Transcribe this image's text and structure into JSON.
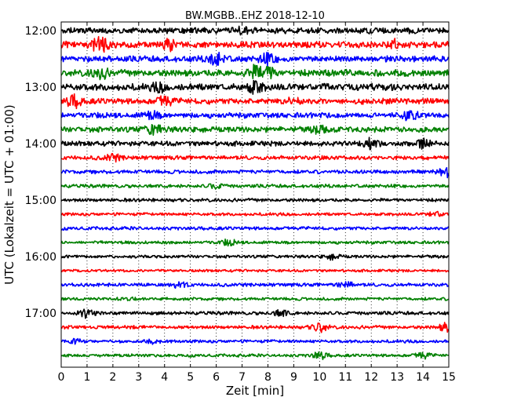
{
  "chart_data": {
    "type": "line",
    "title": "BW.MGBB..EHZ 2018-12-10",
    "xlabel": "Zeit  [min]",
    "ylabel": "UTC (Lokalzeit = UTC + 01:00)",
    "xlim": [
      0,
      15
    ],
    "x_ticks": [
      0,
      1,
      2,
      3,
      4,
      5,
      6,
      7,
      8,
      9,
      10,
      11,
      12,
      13,
      14,
      15
    ],
    "y_tick_labels": [
      "12:00",
      "13:00",
      "14:00",
      "15:00",
      "16:00",
      "17:00"
    ],
    "row_interval_minutes": 15,
    "grid": "vertical dotted at each minute",
    "colors": [
      "#000000",
      "#ff0000",
      "#0000ff",
      "#008000"
    ],
    "series": [
      {
        "start": "12:00",
        "amplitude": 0.8,
        "bursts": [
          [
            7.0,
            0.8
          ]
        ]
      },
      {
        "start": "12:15",
        "amplitude": 0.85,
        "bursts": [
          [
            1.5,
            2.2
          ],
          [
            4.2,
            1.2
          ],
          [
            13.0,
            1.1
          ]
        ]
      },
      {
        "start": "12:30",
        "amplitude": 0.8,
        "bursts": [
          [
            6.0,
            1.5
          ],
          [
            8.0,
            1.3
          ]
        ]
      },
      {
        "start": "12:45",
        "amplitude": 0.9,
        "bursts": [
          [
            1.5,
            1.4
          ],
          [
            7.5,
            1.6
          ],
          [
            8.0,
            1.6
          ]
        ]
      },
      {
        "start": "13:00",
        "amplitude": 0.9,
        "bursts": [
          [
            7.5,
            1.5
          ],
          [
            3.8,
            0.9
          ]
        ]
      },
      {
        "start": "13:15",
        "amplitude": 0.8,
        "bursts": [
          [
            0.5,
            1.5
          ],
          [
            4.0,
            1.2
          ],
          [
            9.0,
            0.7
          ]
        ]
      },
      {
        "start": "13:30",
        "amplitude": 0.7,
        "bursts": [
          [
            13.5,
            1.3
          ],
          [
            3.5,
            1.1
          ]
        ]
      },
      {
        "start": "13:45",
        "amplitude": 0.75,
        "bursts": [
          [
            3.6,
            1.3
          ],
          [
            10.0,
            0.9
          ]
        ]
      },
      {
        "start": "14:00",
        "amplitude": 0.65,
        "bursts": [
          [
            12.0,
            1.3
          ],
          [
            14.0,
            1.2
          ]
        ]
      },
      {
        "start": "14:15",
        "amplitude": 0.55,
        "bursts": [
          [
            2.0,
            0.9
          ]
        ]
      },
      {
        "start": "14:30",
        "amplitude": 0.5,
        "bursts": [
          [
            14.9,
            1.4
          ]
        ]
      },
      {
        "start": "14:45",
        "amplitude": 0.45,
        "bursts": [
          [
            6.0,
            0.6
          ]
        ]
      },
      {
        "start": "15:00",
        "amplitude": 0.45,
        "bursts": []
      },
      {
        "start": "15:15",
        "amplitude": 0.4,
        "bursts": [
          [
            14.5,
            0.6
          ]
        ]
      },
      {
        "start": "15:30",
        "amplitude": 0.45,
        "bursts": []
      },
      {
        "start": "15:45",
        "amplitude": 0.4,
        "bursts": [
          [
            6.5,
            0.7
          ]
        ]
      },
      {
        "start": "16:00",
        "amplitude": 0.4,
        "bursts": [
          [
            10.5,
            0.7
          ]
        ]
      },
      {
        "start": "16:15",
        "amplitude": 0.35,
        "bursts": []
      },
      {
        "start": "16:30",
        "amplitude": 0.45,
        "bursts": [
          [
            11.0,
            0.9
          ],
          [
            4.6,
            0.8
          ]
        ]
      },
      {
        "start": "16:45",
        "amplitude": 0.4,
        "bursts": [
          [
            2.5,
            0.5
          ]
        ]
      },
      {
        "start": "17:00",
        "amplitude": 0.45,
        "bursts": [
          [
            1.0,
            1.3
          ],
          [
            8.5,
            0.8
          ]
        ]
      },
      {
        "start": "17:15",
        "amplitude": 0.45,
        "bursts": [
          [
            10.0,
            1.4
          ],
          [
            14.9,
            1.1
          ]
        ]
      },
      {
        "start": "17:30",
        "amplitude": 0.4,
        "bursts": [
          [
            0.5,
            0.7
          ],
          [
            3.5,
            0.8
          ]
        ]
      },
      {
        "start": "17:45",
        "amplitude": 0.4,
        "bursts": [
          [
            10.0,
            1.0
          ],
          [
            14.0,
            0.8
          ]
        ]
      }
    ]
  }
}
